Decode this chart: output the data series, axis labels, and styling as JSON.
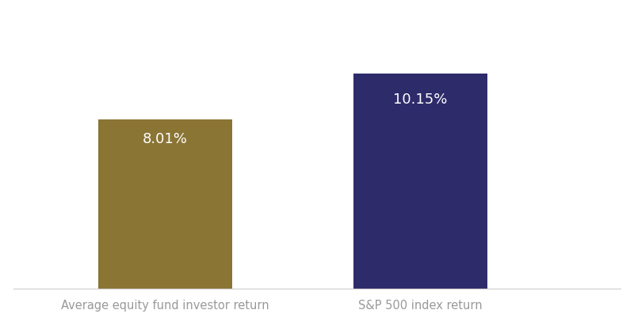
{
  "categories": [
    "Average equity fund investor return",
    "S&P 500 index return"
  ],
  "values": [
    8.01,
    10.15
  ],
  "bar_colors": [
    "#8B7535",
    "#2E2B6B"
  ],
  "label_texts": [
    "8.01%",
    "10.15%"
  ],
  "label_color": "#FFFFFF",
  "label_fontsize": 13,
  "tick_label_fontsize": 10.5,
  "tick_label_color": "#999999",
  "background_color": "#FFFFFF",
  "ylim": [
    0,
    13.0
  ],
  "bar_width": 0.22,
  "x_positions": [
    0.25,
    0.67
  ],
  "xlim": [
    0.0,
    1.0
  ],
  "figsize": [
    8.0,
    4.11
  ],
  "dpi": 100
}
